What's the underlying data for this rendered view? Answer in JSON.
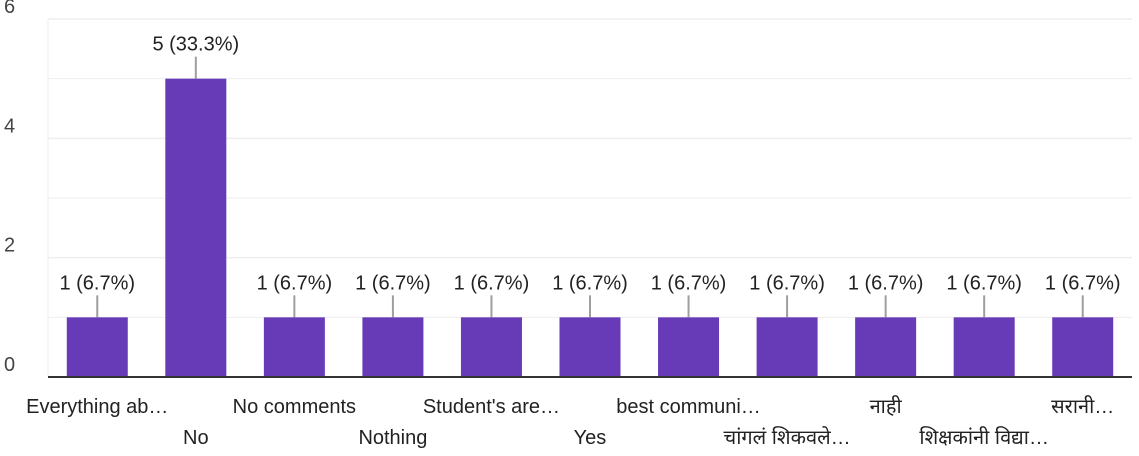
{
  "chart_data": {
    "type": "bar",
    "categories": [
      "Everything ab…",
      "No",
      "No comments",
      "Nothing",
      "Student's are…",
      "Yes",
      "best communi…",
      "चांगलं शिकवले…",
      "नाही",
      "शिक्षकांनी विद्या…",
      "सरानी…"
    ],
    "values": [
      1,
      5,
      1,
      1,
      1,
      1,
      1,
      1,
      1,
      1,
      1
    ],
    "data_labels": [
      "1 (6.7%)",
      "5 (33.3%)",
      "1 (6.7%)",
      "1 (6.7%)",
      "1 (6.7%)",
      "1 (6.7%)",
      "1 (6.7%)",
      "1 (6.7%)",
      "1 (6.7%)",
      "1 (6.7%)",
      "1 (6.7%)"
    ],
    "ylim": [
      0,
      6
    ],
    "yticks": [
      0,
      2,
      4,
      6
    ],
    "ytick_labels": [
      "0",
      "2",
      "4",
      "6"
    ],
    "grid": true,
    "legend": "none",
    "colors": {
      "bar": "#673ab7",
      "grid": "#eeeeee",
      "axis": "#333333",
      "leader": "#9e9e9e",
      "text": "#222222"
    }
  }
}
